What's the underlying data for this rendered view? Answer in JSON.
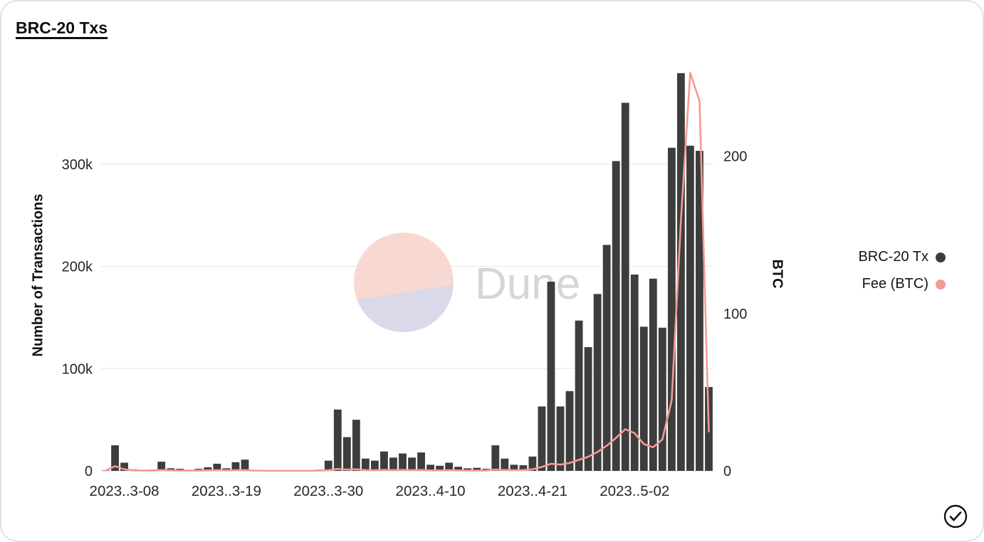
{
  "page": {
    "title": "BRC-20 Txs"
  },
  "chart_data": {
    "type": "bar",
    "title": "BRC-20 Txs",
    "x": [
      "2023-03-06",
      "2023-03-07",
      "2023-03-08",
      "2023-03-09",
      "2023-03-10",
      "2023-03-11",
      "2023-03-12",
      "2023-03-13",
      "2023-03-14",
      "2023-03-15",
      "2023-03-16",
      "2023-03-17",
      "2023-03-18",
      "2023-03-19",
      "2023-03-20",
      "2023-03-21",
      "2023-03-22",
      "2023-03-23",
      "2023-03-24",
      "2023-03-25",
      "2023-03-26",
      "2023-03-27",
      "2023-03-28",
      "2023-03-29",
      "2023-03-30",
      "2023-03-31",
      "2023-04-01",
      "2023-04-02",
      "2023-04-03",
      "2023-04-04",
      "2023-04-05",
      "2023-04-06",
      "2023-04-07",
      "2023-04-08",
      "2023-04-09",
      "2023-04-10",
      "2023-04-11",
      "2023-04-12",
      "2023-04-13",
      "2023-04-14",
      "2023-04-15",
      "2023-04-16",
      "2023-04-17",
      "2023-04-18",
      "2023-04-19",
      "2023-04-20",
      "2023-04-21",
      "2023-04-22",
      "2023-04-23",
      "2023-04-24",
      "2023-04-25",
      "2023-04-26",
      "2023-04-27",
      "2023-04-28",
      "2023-04-29",
      "2023-04-30",
      "2023-05-01",
      "2023-05-02",
      "2023-05-03",
      "2023-05-04",
      "2023-05-05",
      "2023-05-06",
      "2023-05-07",
      "2023-05-08",
      "2023-05-09",
      "2023-05-10"
    ],
    "series": [
      {
        "name": "BRC-20 Tx",
        "type": "bar",
        "axis": "left",
        "color": "#3d3d3d",
        "values": [
          300,
          25000,
          8000,
          1500,
          800,
          1200,
          9000,
          2500,
          2000,
          1000,
          2000,
          3500,
          7000,
          2500,
          8500,
          11000,
          700,
          400,
          300,
          300,
          300,
          400,
          600,
          1200,
          10000,
          60000,
          33000,
          50000,
          12000,
          10000,
          19000,
          13000,
          17000,
          13000,
          18000,
          6000,
          5000,
          8000,
          4000,
          2500,
          3000,
          2000,
          25000,
          12000,
          6000,
          5500,
          14000,
          63000,
          185000,
          63000,
          78000,
          147000,
          121000,
          173000,
          221000,
          303000,
          360000,
          192000,
          141000,
          188000,
          140000,
          316000,
          389000,
          318000,
          313000,
          82000
        ]
      },
      {
        "name": "Fee (BTC)",
        "type": "line",
        "axis": "right",
        "color": "#f59a94",
        "values": [
          0.3,
          3,
          1,
          0.3,
          0.2,
          0.2,
          0.5,
          0.3,
          0.2,
          0.2,
          0.2,
          0.3,
          0.4,
          0.3,
          0.4,
          0.5,
          0.2,
          0.1,
          0.1,
          0.1,
          0.1,
          0.1,
          0.1,
          0.2,
          0.4,
          1.2,
          0.8,
          1.0,
          0.5,
          0.4,
          0.6,
          0.5,
          0.6,
          0.5,
          0.6,
          0.3,
          0.3,
          0.4,
          0.3,
          0.2,
          0.2,
          0.2,
          0.8,
          0.6,
          0.4,
          0.5,
          1.0,
          2.5,
          4.5,
          4.0,
          5.0,
          7.0,
          9.0,
          12.0,
          16.0,
          21.0,
          26.5,
          24.0,
          17.0,
          15.0,
          20.0,
          45.0,
          160.0,
          253.0,
          235.0,
          25.0
        ]
      }
    ],
    "left_axis": {
      "label": "Number of Transactions",
      "max": 400000,
      "ticks": [
        {
          "value": 0,
          "label": "0"
        },
        {
          "value": 100000,
          "label": "100k"
        },
        {
          "value": 200000,
          "label": "200k"
        },
        {
          "value": 300000,
          "label": "300k"
        }
      ]
    },
    "right_axis": {
      "label": "BTC",
      "max": 260,
      "ticks": [
        {
          "value": 0,
          "label": "0"
        },
        {
          "value": 100,
          "label": "100"
        },
        {
          "value": 200,
          "label": "200"
        }
      ]
    },
    "x_ticks": [
      {
        "index": 2,
        "label": "2023..3-08"
      },
      {
        "index": 13,
        "label": "2023..3-19"
      },
      {
        "index": 24,
        "label": "2023..3-30"
      },
      {
        "index": 35,
        "label": "2023..4-10"
      },
      {
        "index": 46,
        "label": "2023..4-21"
      },
      {
        "index": 57,
        "label": "2023..5-02"
      }
    ],
    "grid": "horizontal",
    "legend": {
      "position": "right",
      "items": [
        {
          "label": "BRC-20 Tx",
          "color": "#3d3d3d"
        },
        {
          "label": "Fee (BTC)",
          "color": "#f59a94"
        }
      ]
    },
    "watermark": {
      "text": "Dune",
      "text_color": "#d6d6d6",
      "circle_top_color": "#f8d9d2",
      "circle_bottom_color": "#d9d9e9"
    }
  },
  "colors": {
    "bar": "#3d3d3d",
    "line": "#f59a94",
    "grid": "#e9e9e9",
    "tick_text": "#262626"
  }
}
